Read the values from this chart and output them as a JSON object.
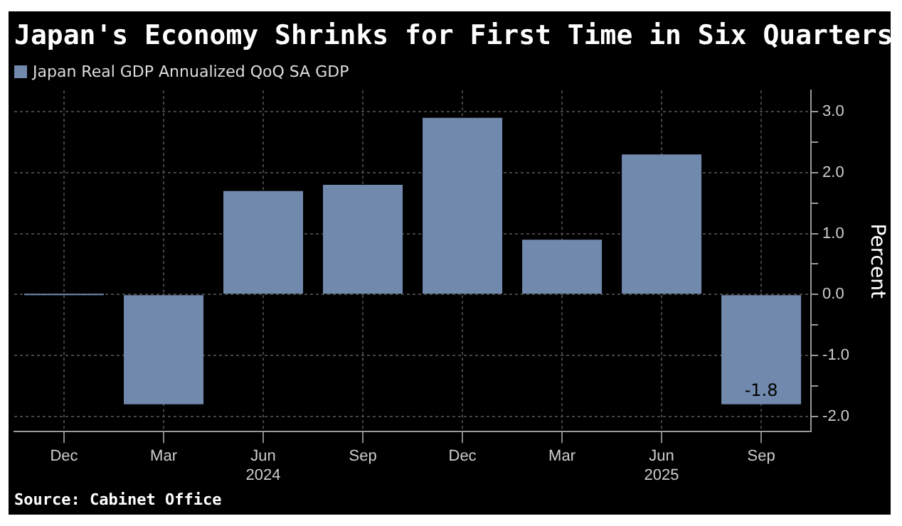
{
  "chart_data": {
    "type": "bar",
    "title": "Japan's Economy Shrinks for First Time in Six Quarters",
    "ylabel": "Percent",
    "categories": [
      "Dec",
      "Mar",
      "Jun\n2024",
      "Sep",
      "Dec",
      "Mar",
      "Jun\n2025",
      "Sep"
    ],
    "series": [
      {
        "name": "Japan Real GDP Annualized QoQ SA GDP",
        "color": "#7189ad",
        "values": [
          0.0,
          -1.8,
          1.7,
          1.8,
          2.9,
          0.9,
          2.3,
          -1.8
        ],
        "value_labels": [
          null,
          null,
          null,
          null,
          null,
          null,
          null,
          "-1.8"
        ]
      }
    ],
    "ylim": [
      -2.25,
      3.35
    ],
    "yticks": [
      {
        "value": -2,
        "label": "-2.0"
      },
      {
        "value": -1.5,
        "label": null
      },
      {
        "value": -1,
        "label": "-1.0"
      },
      {
        "value": -0.5,
        "label": null
      },
      {
        "value": 0,
        "label": "0.0"
      },
      {
        "value": 0.5,
        "label": null
      },
      {
        "value": 1,
        "label": "1.0"
      },
      {
        "value": 1.5,
        "label": null
      },
      {
        "value": 2,
        "label": "2.0"
      },
      {
        "value": 2.5,
        "label": null
      },
      {
        "value": 3,
        "label": "3.0"
      }
    ],
    "grid": true,
    "legend": "top left",
    "annotations": [
      "Source: Cabinet Office"
    ]
  }
}
